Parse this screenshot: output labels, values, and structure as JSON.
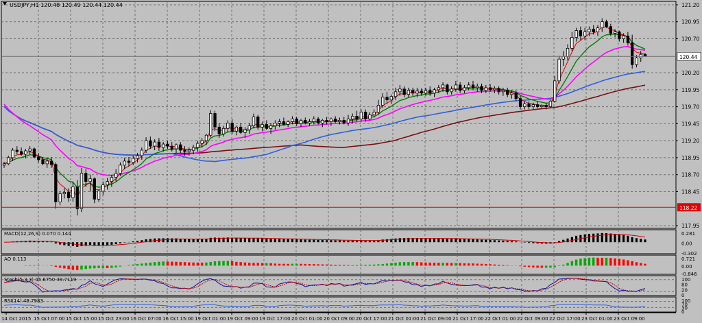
{
  "main": {
    "header": "USDJPY,H1  120.48 120.49 120.44 120.44",
    "ymin": 117.91,
    "ymax": 121.25,
    "y_ticks": [
      "121.20",
      "120.95",
      "120.70",
      "120.44",
      "120.20",
      "119.95",
      "119.70",
      "119.45",
      "119.20",
      "118.95",
      "118.70",
      "118.45",
      "118.22",
      "117.95"
    ],
    "current_price": "120.44",
    "level_price": "118.22",
    "candles": [
      [
        118.84,
        118.89,
        118.8,
        118.86
      ],
      [
        118.86,
        118.98,
        118.84,
        118.95
      ],
      [
        118.95,
        119.09,
        118.9,
        119.06
      ],
      [
        119.06,
        119.12,
        119.0,
        119.04
      ],
      [
        119.04,
        119.1,
        118.98,
        119.0
      ],
      [
        119.0,
        119.08,
        118.94,
        119.05
      ],
      [
        119.05,
        119.12,
        119.0,
        119.08
      ],
      [
        119.08,
        119.1,
        118.94,
        118.96
      ],
      [
        118.96,
        119.02,
        118.88,
        118.92
      ],
      [
        118.92,
        118.96,
        118.84,
        118.86
      ],
      [
        118.86,
        118.95,
        118.8,
        118.9
      ],
      [
        118.9,
        118.96,
        118.8,
        118.85
      ],
      [
        118.85,
        118.88,
        118.2,
        118.3
      ],
      [
        118.3,
        118.45,
        118.25,
        118.42
      ],
      [
        118.42,
        118.5,
        118.35,
        118.44
      ],
      [
        118.44,
        118.5,
        118.3,
        118.36
      ],
      [
        118.36,
        118.6,
        118.3,
        118.52
      ],
      [
        118.52,
        118.62,
        118.1,
        118.2
      ],
      [
        118.2,
        118.8,
        118.15,
        118.72
      ],
      [
        118.72,
        118.78,
        118.52,
        118.6
      ],
      [
        118.6,
        118.7,
        118.45,
        118.64
      ],
      [
        118.64,
        118.66,
        118.28,
        118.34
      ],
      [
        118.34,
        118.48,
        118.3,
        118.46
      ],
      [
        118.46,
        118.6,
        118.4,
        118.55
      ],
      [
        118.55,
        118.65,
        118.48,
        118.6
      ],
      [
        118.6,
        118.7,
        118.52,
        118.66
      ],
      [
        118.66,
        118.78,
        118.6,
        118.72
      ],
      [
        118.72,
        118.88,
        118.68,
        118.84
      ],
      [
        118.84,
        118.95,
        118.78,
        118.9
      ],
      [
        118.9,
        118.96,
        118.82,
        118.88
      ],
      [
        118.88,
        118.98,
        118.84,
        118.94
      ],
      [
        118.94,
        119.02,
        118.88,
        118.98
      ],
      [
        118.98,
        119.1,
        118.92,
        119.06
      ],
      [
        119.06,
        119.25,
        119.02,
        119.2
      ],
      [
        119.2,
        119.26,
        119.08,
        119.12
      ],
      [
        119.12,
        119.22,
        119.06,
        119.18
      ],
      [
        119.18,
        119.24,
        119.05,
        119.1
      ],
      [
        119.1,
        119.18,
        119.04,
        119.15
      ],
      [
        119.15,
        119.2,
        119.08,
        119.12
      ],
      [
        119.12,
        119.18,
        119.04,
        119.08
      ],
      [
        119.08,
        119.16,
        119.02,
        119.14
      ],
      [
        119.14,
        119.18,
        119.02,
        119.06
      ],
      [
        119.06,
        119.12,
        118.98,
        119.04
      ],
      [
        119.04,
        119.1,
        118.98,
        119.06
      ],
      [
        119.06,
        119.14,
        119.0,
        119.1
      ],
      [
        119.1,
        119.2,
        119.04,
        119.16
      ],
      [
        119.16,
        119.24,
        119.1,
        119.2
      ],
      [
        119.2,
        119.3,
        119.14,
        119.28
      ],
      [
        119.28,
        119.65,
        119.25,
        119.6
      ],
      [
        119.6,
        119.64,
        119.34,
        119.4
      ],
      [
        119.4,
        119.46,
        119.24,
        119.3
      ],
      [
        119.3,
        119.42,
        119.26,
        119.38
      ],
      [
        119.38,
        119.5,
        119.32,
        119.46
      ],
      [
        119.46,
        119.52,
        119.3,
        119.34
      ],
      [
        119.34,
        119.42,
        119.28,
        119.4
      ],
      [
        119.4,
        119.46,
        119.3,
        119.32
      ],
      [
        119.32,
        119.4,
        119.24,
        119.36
      ],
      [
        119.36,
        119.46,
        119.3,
        119.42
      ],
      [
        119.42,
        119.6,
        119.38,
        119.55
      ],
      [
        119.55,
        119.58,
        119.36,
        119.4
      ],
      [
        119.4,
        119.48,
        119.34,
        119.44
      ],
      [
        119.44,
        119.5,
        119.36,
        119.38
      ],
      [
        119.38,
        119.46,
        119.3,
        119.42
      ],
      [
        119.42,
        119.5,
        119.36,
        119.46
      ],
      [
        119.46,
        119.52,
        119.4,
        119.48
      ],
      [
        119.48,
        119.54,
        119.42,
        119.44
      ],
      [
        119.44,
        119.5,
        119.4,
        119.48
      ],
      [
        119.48,
        119.56,
        119.44,
        119.52
      ],
      [
        119.52,
        119.55,
        119.42,
        119.45
      ],
      [
        119.45,
        119.52,
        119.4,
        119.5
      ],
      [
        119.5,
        119.54,
        119.44,
        119.46
      ],
      [
        119.46,
        119.52,
        119.42,
        119.48
      ],
      [
        119.48,
        119.56,
        119.44,
        119.52
      ],
      [
        119.52,
        119.55,
        119.44,
        119.46
      ],
      [
        119.46,
        119.52,
        119.4,
        119.5
      ],
      [
        119.5,
        119.55,
        119.44,
        119.48
      ],
      [
        119.48,
        119.54,
        119.42,
        119.52
      ],
      [
        119.52,
        119.56,
        119.46,
        119.48
      ],
      [
        119.48,
        119.54,
        119.44,
        119.5
      ],
      [
        119.5,
        119.55,
        119.44,
        119.46
      ],
      [
        119.46,
        119.58,
        119.42,
        119.52
      ],
      [
        119.52,
        119.6,
        119.46,
        119.56
      ],
      [
        119.56,
        119.64,
        119.48,
        119.52
      ],
      [
        119.52,
        119.66,
        119.48,
        119.62
      ],
      [
        119.62,
        119.66,
        119.48,
        119.52
      ],
      [
        119.52,
        119.62,
        119.5,
        119.58
      ],
      [
        119.58,
        119.66,
        119.54,
        119.62
      ],
      [
        119.62,
        119.8,
        119.58,
        119.72
      ],
      [
        119.72,
        119.9,
        119.68,
        119.84
      ],
      [
        119.84,
        119.92,
        119.74,
        119.8
      ],
      [
        119.8,
        119.88,
        119.74,
        119.85
      ],
      [
        119.85,
        119.98,
        119.8,
        119.92
      ],
      [
        119.92,
        120.02,
        119.86,
        119.96
      ],
      [
        119.96,
        120.0,
        119.84,
        119.88
      ],
      [
        119.88,
        119.98,
        119.84,
        119.94
      ],
      [
        119.94,
        119.98,
        119.86,
        119.9
      ],
      [
        119.9,
        119.98,
        119.84,
        119.93
      ],
      [
        119.93,
        119.97,
        119.86,
        119.9
      ],
      [
        119.9,
        119.98,
        119.86,
        119.94
      ],
      [
        119.94,
        120.0,
        119.86,
        119.9
      ],
      [
        119.9,
        119.98,
        119.84,
        119.95
      ],
      [
        119.95,
        120.02,
        119.9,
        119.98
      ],
      [
        119.98,
        120.06,
        119.92,
        120.02
      ],
      [
        120.02,
        120.04,
        119.88,
        119.92
      ],
      [
        119.92,
        120.0,
        119.88,
        119.96
      ],
      [
        119.96,
        120.08,
        119.92,
        120.02
      ],
      [
        120.02,
        120.06,
        119.9,
        119.94
      ],
      [
        119.94,
        120.02,
        119.9,
        119.98
      ],
      [
        119.98,
        120.06,
        119.94,
        120.02
      ],
      [
        120.02,
        120.08,
        119.94,
        119.98
      ],
      [
        119.98,
        120.04,
        119.92,
        120.0
      ],
      [
        120.0,
        120.04,
        119.9,
        119.94
      ],
      [
        119.94,
        120.02,
        119.9,
        119.98
      ],
      [
        119.98,
        120.03,
        119.92,
        119.95
      ],
      [
        119.95,
        120.0,
        119.9,
        119.97
      ],
      [
        119.97,
        120.0,
        119.88,
        119.92
      ],
      [
        119.92,
        119.98,
        119.86,
        119.94
      ],
      [
        119.94,
        119.98,
        119.84,
        119.88
      ],
      [
        119.88,
        119.94,
        119.82,
        119.9
      ],
      [
        119.9,
        119.94,
        119.78,
        119.82
      ],
      [
        119.82,
        119.86,
        119.66,
        119.7
      ],
      [
        119.7,
        119.78,
        119.66,
        119.74
      ],
      [
        119.74,
        119.78,
        119.66,
        119.7
      ],
      [
        119.7,
        119.76,
        119.66,
        119.73
      ],
      [
        119.73,
        119.78,
        119.68,
        119.7
      ],
      [
        119.7,
        119.74,
        119.68,
        119.72
      ],
      [
        119.72,
        119.76,
        119.66,
        119.7
      ],
      [
        119.7,
        119.8,
        119.68,
        119.78
      ],
      [
        119.78,
        120.15,
        119.76,
        120.08
      ],
      [
        120.08,
        120.45,
        120.04,
        120.4
      ],
      [
        120.4,
        120.52,
        120.3,
        120.44
      ],
      [
        120.44,
        120.62,
        120.38,
        120.56
      ],
      [
        120.56,
        120.8,
        120.52,
        120.72
      ],
      [
        120.72,
        120.86,
        120.66,
        120.82
      ],
      [
        120.82,
        120.88,
        120.68,
        120.74
      ],
      [
        120.74,
        120.86,
        120.68,
        120.8
      ],
      [
        120.8,
        120.88,
        120.74,
        120.84
      ],
      [
        120.84,
        120.9,
        120.76,
        120.8
      ],
      [
        120.8,
        120.9,
        120.74,
        120.86
      ],
      [
        120.86,
        121.0,
        120.8,
        120.95
      ],
      [
        120.95,
        120.98,
        120.86,
        120.88
      ],
      [
        120.88,
        120.92,
        120.74,
        120.78
      ],
      [
        120.78,
        120.84,
        120.72,
        120.8
      ],
      [
        120.8,
        120.82,
        120.66,
        120.7
      ],
      [
        120.7,
        120.78,
        120.64,
        120.74
      ],
      [
        120.74,
        120.8,
        120.6,
        120.64
      ],
      [
        120.64,
        120.76,
        120.26,
        120.32
      ],
      [
        120.32,
        120.46,
        120.28,
        120.42
      ],
      [
        120.42,
        120.52,
        120.36,
        120.47
      ],
      [
        120.47,
        120.49,
        120.44,
        120.44
      ]
    ]
  },
  "x_labels": [
    "14 Oct 2015",
    "15 Oct 07:00",
    "15 Oct 15:00",
    "15 Oct 23:00",
    "16 Oct 07:00",
    "16 Oct 15:00",
    "19 Oct 01:00",
    "19 Oct 09:00",
    "19 Oct 17:00",
    "20 Oct 01:00",
    "20 Oct 09:00",
    "20 Oct 17:00",
    "21 Oct 01:00",
    "21 Oct 09:00",
    "21 Oct 17:00",
    "22 Oct 01:00",
    "22 Oct 09:00",
    "22 Oct 17:00",
    "23 Oct 01:00",
    "23 Oct 09:00"
  ],
  "indicators": [
    {
      "name": "MACD",
      "label": "MACD(12,26,9) 0.070 0.144",
      "ticks": [
        "0.281",
        "0.00",
        "-0.302"
      ]
    },
    {
      "name": "AO",
      "label": "AO 0.113",
      "ticks": [
        "0.721",
        "0.00",
        "-0.846"
      ]
    },
    {
      "name": "Stoch",
      "label": "Stoch(5,3,3) 45.6750 39.7119",
      "ticks": [
        "100",
        "80",
        "20",
        "0"
      ]
    },
    {
      "name": "RSI",
      "label": "RSI(14) 49.7983",
      "ticks": [
        "100",
        "70",
        "30",
        "0"
      ]
    }
  ],
  "colors": {
    "background": "#c0c0c0",
    "grid": "#6e6e6e",
    "candle": "#000000",
    "ma_fast": "#e00000",
    "ma_green": "#007f00",
    "ma_magenta": "#ff00ff",
    "ma_blue": "#2f5fe0",
    "ma_maroon": "#7a1010",
    "ao_up": "#00aa00",
    "ao_down": "#ff0000",
    "stoch_main": "#1010a0",
    "stoch_signal": "#c00000",
    "rsi_line": "#2f5fe0",
    "level_line": "#e00000"
  }
}
